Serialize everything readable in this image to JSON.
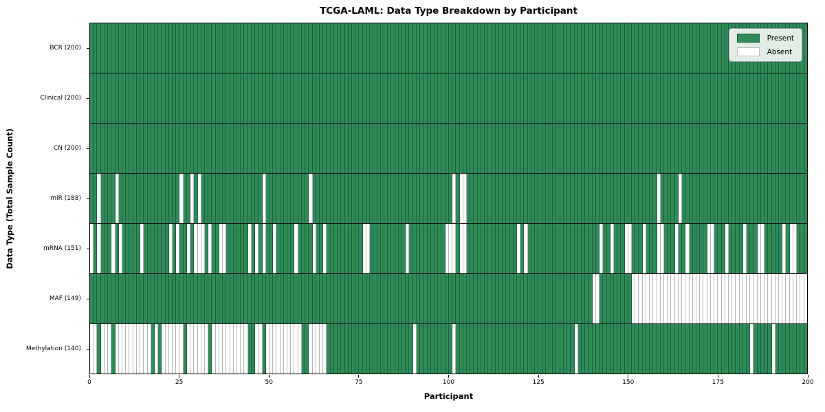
{
  "chart_data": {
    "type": "heatmap",
    "title": "TCGA-LAML: Data Type Breakdown by Participant",
    "xlabel": "Participant",
    "ylabel": "Data Type (Total Sample Count)",
    "legend": {
      "present": "Present",
      "absent": "Absent"
    },
    "legend_position": "upper right",
    "colors": {
      "present": "#2e8b57",
      "absent": "#ffffff",
      "present_cell_border": "#1e5e3e",
      "absent_cell_border": "#b5b5b5",
      "row_separator": "#181818",
      "axes": "#000000"
    },
    "n_participants": 200,
    "x_ticks": [
      0,
      25,
      50,
      75,
      100,
      125,
      150,
      175,
      200
    ],
    "x_range": [
      0,
      200
    ],
    "grid": false,
    "rows": [
      {
        "data_type": "BCR",
        "label": "BCR (200)",
        "present_count": 200,
        "absent_participants": []
      },
      {
        "data_type": "Clinical",
        "label": "Clinical (200)",
        "present_count": 200,
        "absent_participants": []
      },
      {
        "data_type": "CN",
        "label": "CN (200)",
        "present_count": 200,
        "absent_participants": []
      },
      {
        "data_type": "miR",
        "label": "miR (188)",
        "present_count": 188,
        "absent_participants": [
          2,
          7,
          25,
          28,
          30,
          48,
          61,
          101,
          103,
          104,
          158,
          164
        ]
      },
      {
        "data_type": "mRNA",
        "label": "mRNA (151)",
        "present_count": 151,
        "absent_participants": [
          0,
          2,
          6,
          8,
          14,
          22,
          24,
          27,
          29,
          30,
          31,
          33,
          36,
          37,
          44,
          46,
          48,
          51,
          57,
          62,
          65,
          76,
          77,
          88,
          99,
          100,
          101,
          103,
          104,
          119,
          121,
          142,
          145,
          149,
          150,
          154,
          158,
          159,
          163,
          166,
          172,
          173,
          177,
          182,
          186,
          187,
          193,
          195,
          196
        ]
      },
      {
        "data_type": "MAF",
        "label": "MAF (149)",
        "present_count": 149,
        "absent_participants": [
          140,
          141,
          151,
          152,
          153,
          154,
          155,
          156,
          157,
          158,
          159,
          160,
          161,
          162,
          163,
          164,
          165,
          166,
          167,
          168,
          169,
          170,
          171,
          172,
          173,
          174,
          175,
          176,
          177,
          178,
          179,
          180,
          181,
          182,
          183,
          184,
          185,
          186,
          187,
          188,
          189,
          190,
          191,
          192,
          193,
          194,
          195,
          196,
          197,
          198,
          199
        ]
      },
      {
        "data_type": "Methylation",
        "label": "Methylation (140)",
        "present_count": 140,
        "absent_participants": [
          0,
          1,
          3,
          4,
          5,
          7,
          8,
          9,
          10,
          11,
          12,
          13,
          14,
          15,
          16,
          18,
          20,
          21,
          22,
          23,
          24,
          25,
          27,
          28,
          29,
          30,
          31,
          32,
          34,
          35,
          36,
          37,
          38,
          39,
          40,
          41,
          42,
          43,
          46,
          47,
          49,
          50,
          51,
          52,
          53,
          54,
          55,
          56,
          57,
          58,
          61,
          62,
          63,
          64,
          65,
          90,
          101,
          135,
          184,
          190
        ]
      }
    ]
  }
}
